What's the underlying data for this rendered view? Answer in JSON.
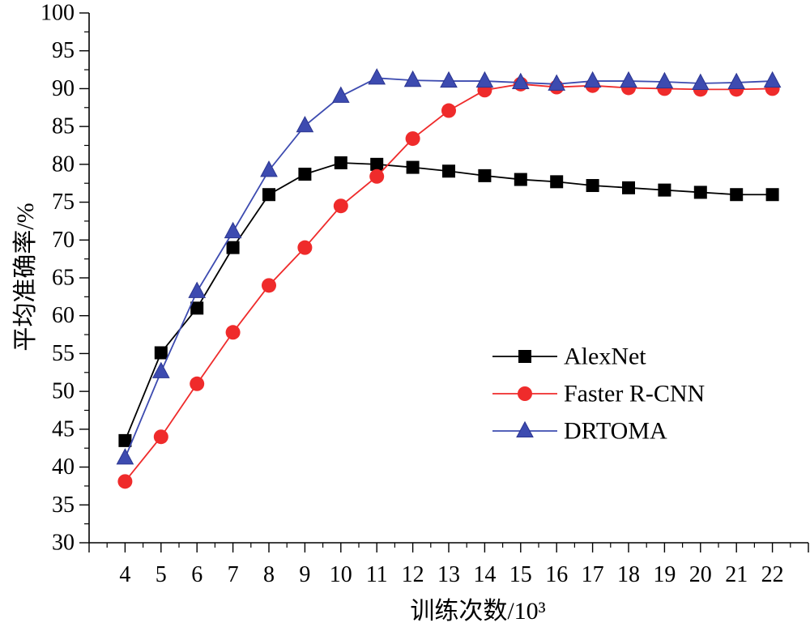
{
  "chart_data": {
    "type": "line",
    "title": "",
    "xlabel": "训练次数/10³",
    "ylabel": "平均准确率/%",
    "xlim": [
      3,
      23
    ],
    "ylim": [
      30,
      100
    ],
    "x_ticks": [
      4,
      5,
      6,
      7,
      8,
      9,
      10,
      11,
      12,
      13,
      14,
      15,
      16,
      17,
      18,
      19,
      20,
      21,
      22
    ],
    "y_ticks": [
      30,
      35,
      40,
      45,
      50,
      55,
      60,
      65,
      70,
      75,
      80,
      85,
      90,
      95,
      100
    ],
    "grid": false,
    "legend_position": "right",
    "x": [
      4,
      5,
      6,
      7,
      8,
      9,
      10,
      11,
      12,
      13,
      14,
      15,
      16,
      17,
      18,
      19,
      20,
      21,
      22
    ],
    "series": [
      {
        "name": "AlexNet",
        "color": "#000000",
        "line_color": "#000000",
        "marker": "square",
        "values": [
          43.5,
          55.1,
          61.0,
          69.0,
          76.0,
          78.7,
          80.2,
          80.0,
          79.6,
          79.1,
          78.5,
          78.0,
          77.7,
          77.2,
          76.9,
          76.6,
          76.3,
          76.0,
          76.0
        ]
      },
      {
        "name": "Faster R-CNN",
        "color": "#ef2b2b",
        "line_color": "#ef2b2b",
        "marker": "circle",
        "values": [
          38.1,
          44.0,
          51.0,
          57.8,
          64.0,
          69.0,
          74.5,
          78.4,
          83.4,
          87.1,
          89.8,
          90.6,
          90.2,
          90.4,
          90.1,
          90.0,
          89.9,
          89.9,
          90.0
        ]
      },
      {
        "name": "DRTOMA",
        "color": "#3d4bb0",
        "line_color": "#3d4bb0",
        "marker": "triangle",
        "values": [
          41.2,
          52.6,
          63.2,
          71.1,
          79.2,
          85.1,
          89.0,
          91.4,
          91.1,
          91.0,
          91.0,
          90.8,
          90.6,
          91.0,
          91.0,
          90.9,
          90.7,
          90.8,
          91.0
        ]
      }
    ]
  }
}
